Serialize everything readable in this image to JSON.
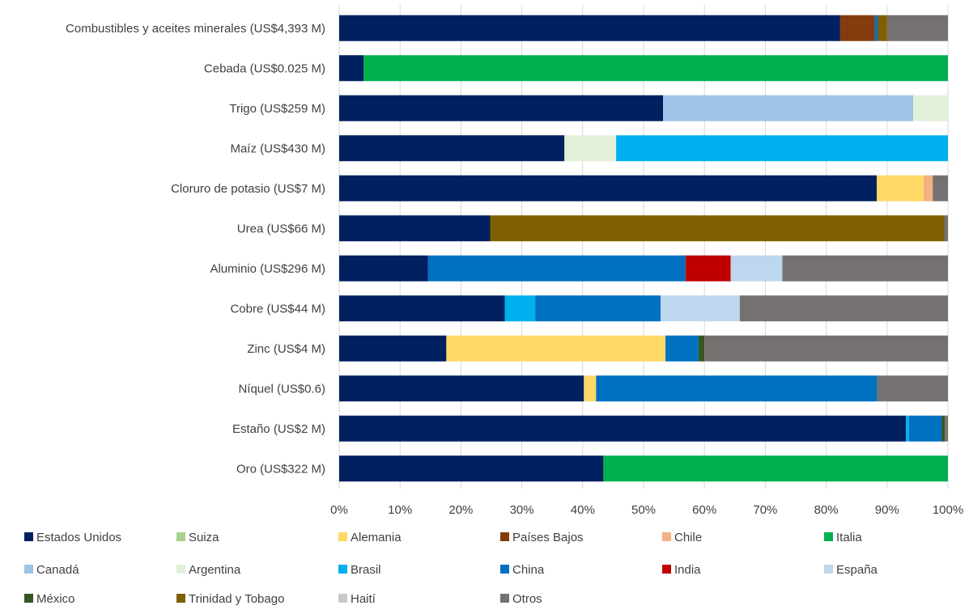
{
  "chart_data": {
    "type": "bar",
    "orientation": "horizontal",
    "stacked": "percent",
    "title": "",
    "xlabel": "",
    "ylabel": "",
    "xlim": [
      0,
      100
    ],
    "ticks": [
      "0%",
      "10%",
      "20%",
      "30%",
      "40%",
      "50%",
      "60%",
      "70%",
      "80%",
      "90%",
      "100%"
    ],
    "grid": true,
    "legend_position": "bottom",
    "categories": [
      "Combustibles y aceites minerales (US$4,393 M)",
      "Cebada (US$0.025 M)",
      "Trigo (US$259 M)",
      "Maíz (US$430 M)",
      "Cloruro de potasio (US$7 M)",
      "Urea (US$66 M)",
      "Aluminio (US$296 M)",
      "Cobre (US$44 M)",
      "Zinc (US$4 M)",
      "Níquel (US$0.6)",
      "Estaño (US$2 M)",
      "Oro (US$322 M)"
    ],
    "series": [
      {
        "name": "Estados Unidos",
        "color": "#002060",
        "values": [
          82.3,
          4.0,
          53.2,
          37.0,
          88.3,
          24.8,
          14.6,
          27.2,
          17.6,
          40.2,
          93.1,
          43.4
        ]
      },
      {
        "name": "Suiza",
        "color": "#a9d18e",
        "values": [
          0,
          0,
          0,
          0,
          0,
          0,
          0,
          0,
          0,
          0,
          0,
          0
        ]
      },
      {
        "name": "Alemania",
        "color": "#ffd966",
        "values": [
          0,
          0,
          0,
          0,
          7.7,
          0,
          0,
          0,
          36.0,
          2.0,
          0,
          0
        ]
      },
      {
        "name": "Países Bajos",
        "color": "#843c0c",
        "values": [
          5.7,
          0,
          0,
          0,
          0,
          0,
          0,
          0,
          0,
          0,
          0,
          0
        ]
      },
      {
        "name": "Chile",
        "color": "#f4b183",
        "values": [
          0,
          0,
          0,
          0,
          1.5,
          0,
          0,
          0,
          0,
          0,
          0,
          0
        ]
      },
      {
        "name": "Italia",
        "color": "#00b050",
        "values": [
          0,
          96.0,
          0,
          0,
          0,
          0,
          0,
          0,
          0,
          0,
          0,
          56.6
        ]
      },
      {
        "name": "Canadá",
        "color": "#9dc3e6",
        "values": [
          0,
          0,
          41.1,
          0,
          0,
          0,
          0,
          0,
          0,
          0,
          0,
          0
        ]
      },
      {
        "name": "Argentina",
        "color": "#e2f0d9",
        "values": [
          0,
          0,
          5.7,
          8.5,
          0,
          0,
          0,
          0,
          0,
          0,
          0,
          0
        ]
      },
      {
        "name": "Brasil",
        "color": "#00b0f0",
        "values": [
          0,
          0,
          0,
          54.5,
          0,
          0,
          0,
          5.0,
          0,
          0,
          0.5,
          0
        ]
      },
      {
        "name": "China",
        "color": "#0070c0",
        "values": [
          0.5,
          0,
          0,
          0,
          0,
          0,
          42.3,
          20.6,
          5.4,
          46.2,
          5.4,
          0
        ]
      },
      {
        "name": "India",
        "color": "#c00000",
        "values": [
          0,
          0,
          0,
          0,
          0,
          0,
          7.4,
          0,
          0,
          0,
          0,
          0
        ]
      },
      {
        "name": "España",
        "color": "#bdd7ee",
        "values": [
          0,
          0,
          0,
          0,
          0,
          0,
          8.5,
          13.0,
          0,
          0,
          0,
          0
        ]
      },
      {
        "name": "México",
        "color": "#375623",
        "values": [
          0,
          0,
          0,
          0,
          0,
          0,
          0,
          0,
          1.0,
          0,
          0.5,
          0
        ]
      },
      {
        "name": "Trinidad y Tobago",
        "color": "#7f6000",
        "values": [
          1.5,
          0,
          0,
          0,
          0,
          74.6,
          0,
          0,
          0,
          0,
          0,
          0
        ]
      },
      {
        "name": "Haití",
        "color": "#c9c9c9",
        "values": [
          0,
          0,
          0,
          0,
          0,
          0,
          0,
          0,
          0,
          0,
          0,
          0
        ]
      },
      {
        "name": "Otros",
        "color": "#767171",
        "values": [
          10.0,
          0,
          0,
          0,
          2.5,
          0.6,
          27.2,
          34.2,
          40.0,
          11.6,
          0.5,
          0
        ]
      }
    ]
  }
}
